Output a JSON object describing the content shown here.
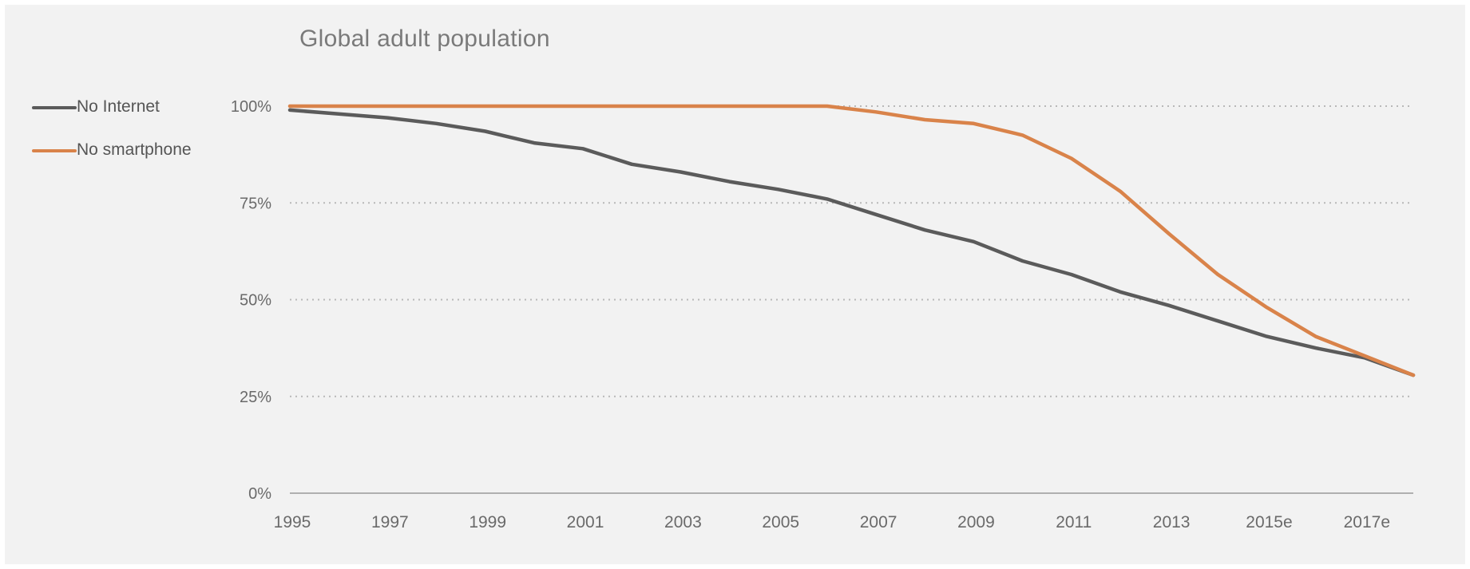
{
  "chart_data": {
    "type": "line",
    "title": "Global adult population",
    "xlabel": "",
    "ylabel": "",
    "x": [
      1995,
      1996,
      1997,
      1998,
      1999,
      2000,
      2001,
      2002,
      2003,
      2004,
      2005,
      2006,
      2007,
      2008,
      2009,
      2010,
      2011,
      2012,
      2013,
      2014,
      2015,
      2016,
      2017,
      2018
    ],
    "x_tick_values": [
      1995,
      1997,
      1999,
      2001,
      2003,
      2005,
      2007,
      2009,
      2011,
      2013,
      2015,
      2017
    ],
    "x_tick_labels": [
      "1995",
      "1997",
      "1999",
      "2001",
      "2003",
      "2005",
      "2007",
      "2009",
      "2011",
      "2013",
      "2015e",
      "2017e"
    ],
    "xlim": [
      1995,
      2018
    ],
    "y_ticks": [
      0,
      25,
      50,
      75,
      100
    ],
    "y_tick_labels": [
      "0%",
      "25%",
      "50%",
      "75%",
      "100%"
    ],
    "ylim": [
      0,
      100
    ],
    "grid": "horizontal dotted",
    "legend_position": "top-left",
    "series": [
      {
        "name": "No Internet",
        "color": "#5b5b5b",
        "values": [
          99,
          98,
          97,
          95.5,
          93.5,
          90.5,
          89,
          85,
          83,
          80.5,
          78.5,
          76,
          72,
          68,
          65,
          60,
          56.5,
          52,
          48.5,
          44.5,
          40.5,
          37.5,
          35,
          30.5
        ]
      },
      {
        "name": "No smartphone",
        "color": "#d9834a",
        "values": [
          100,
          100,
          100,
          100,
          100,
          100,
          100,
          100,
          100,
          100,
          100,
          100,
          98.5,
          96.5,
          95.5,
          92.5,
          86.5,
          78,
          67,
          56.5,
          48,
          40.5,
          35.5,
          30.5
        ]
      }
    ]
  }
}
